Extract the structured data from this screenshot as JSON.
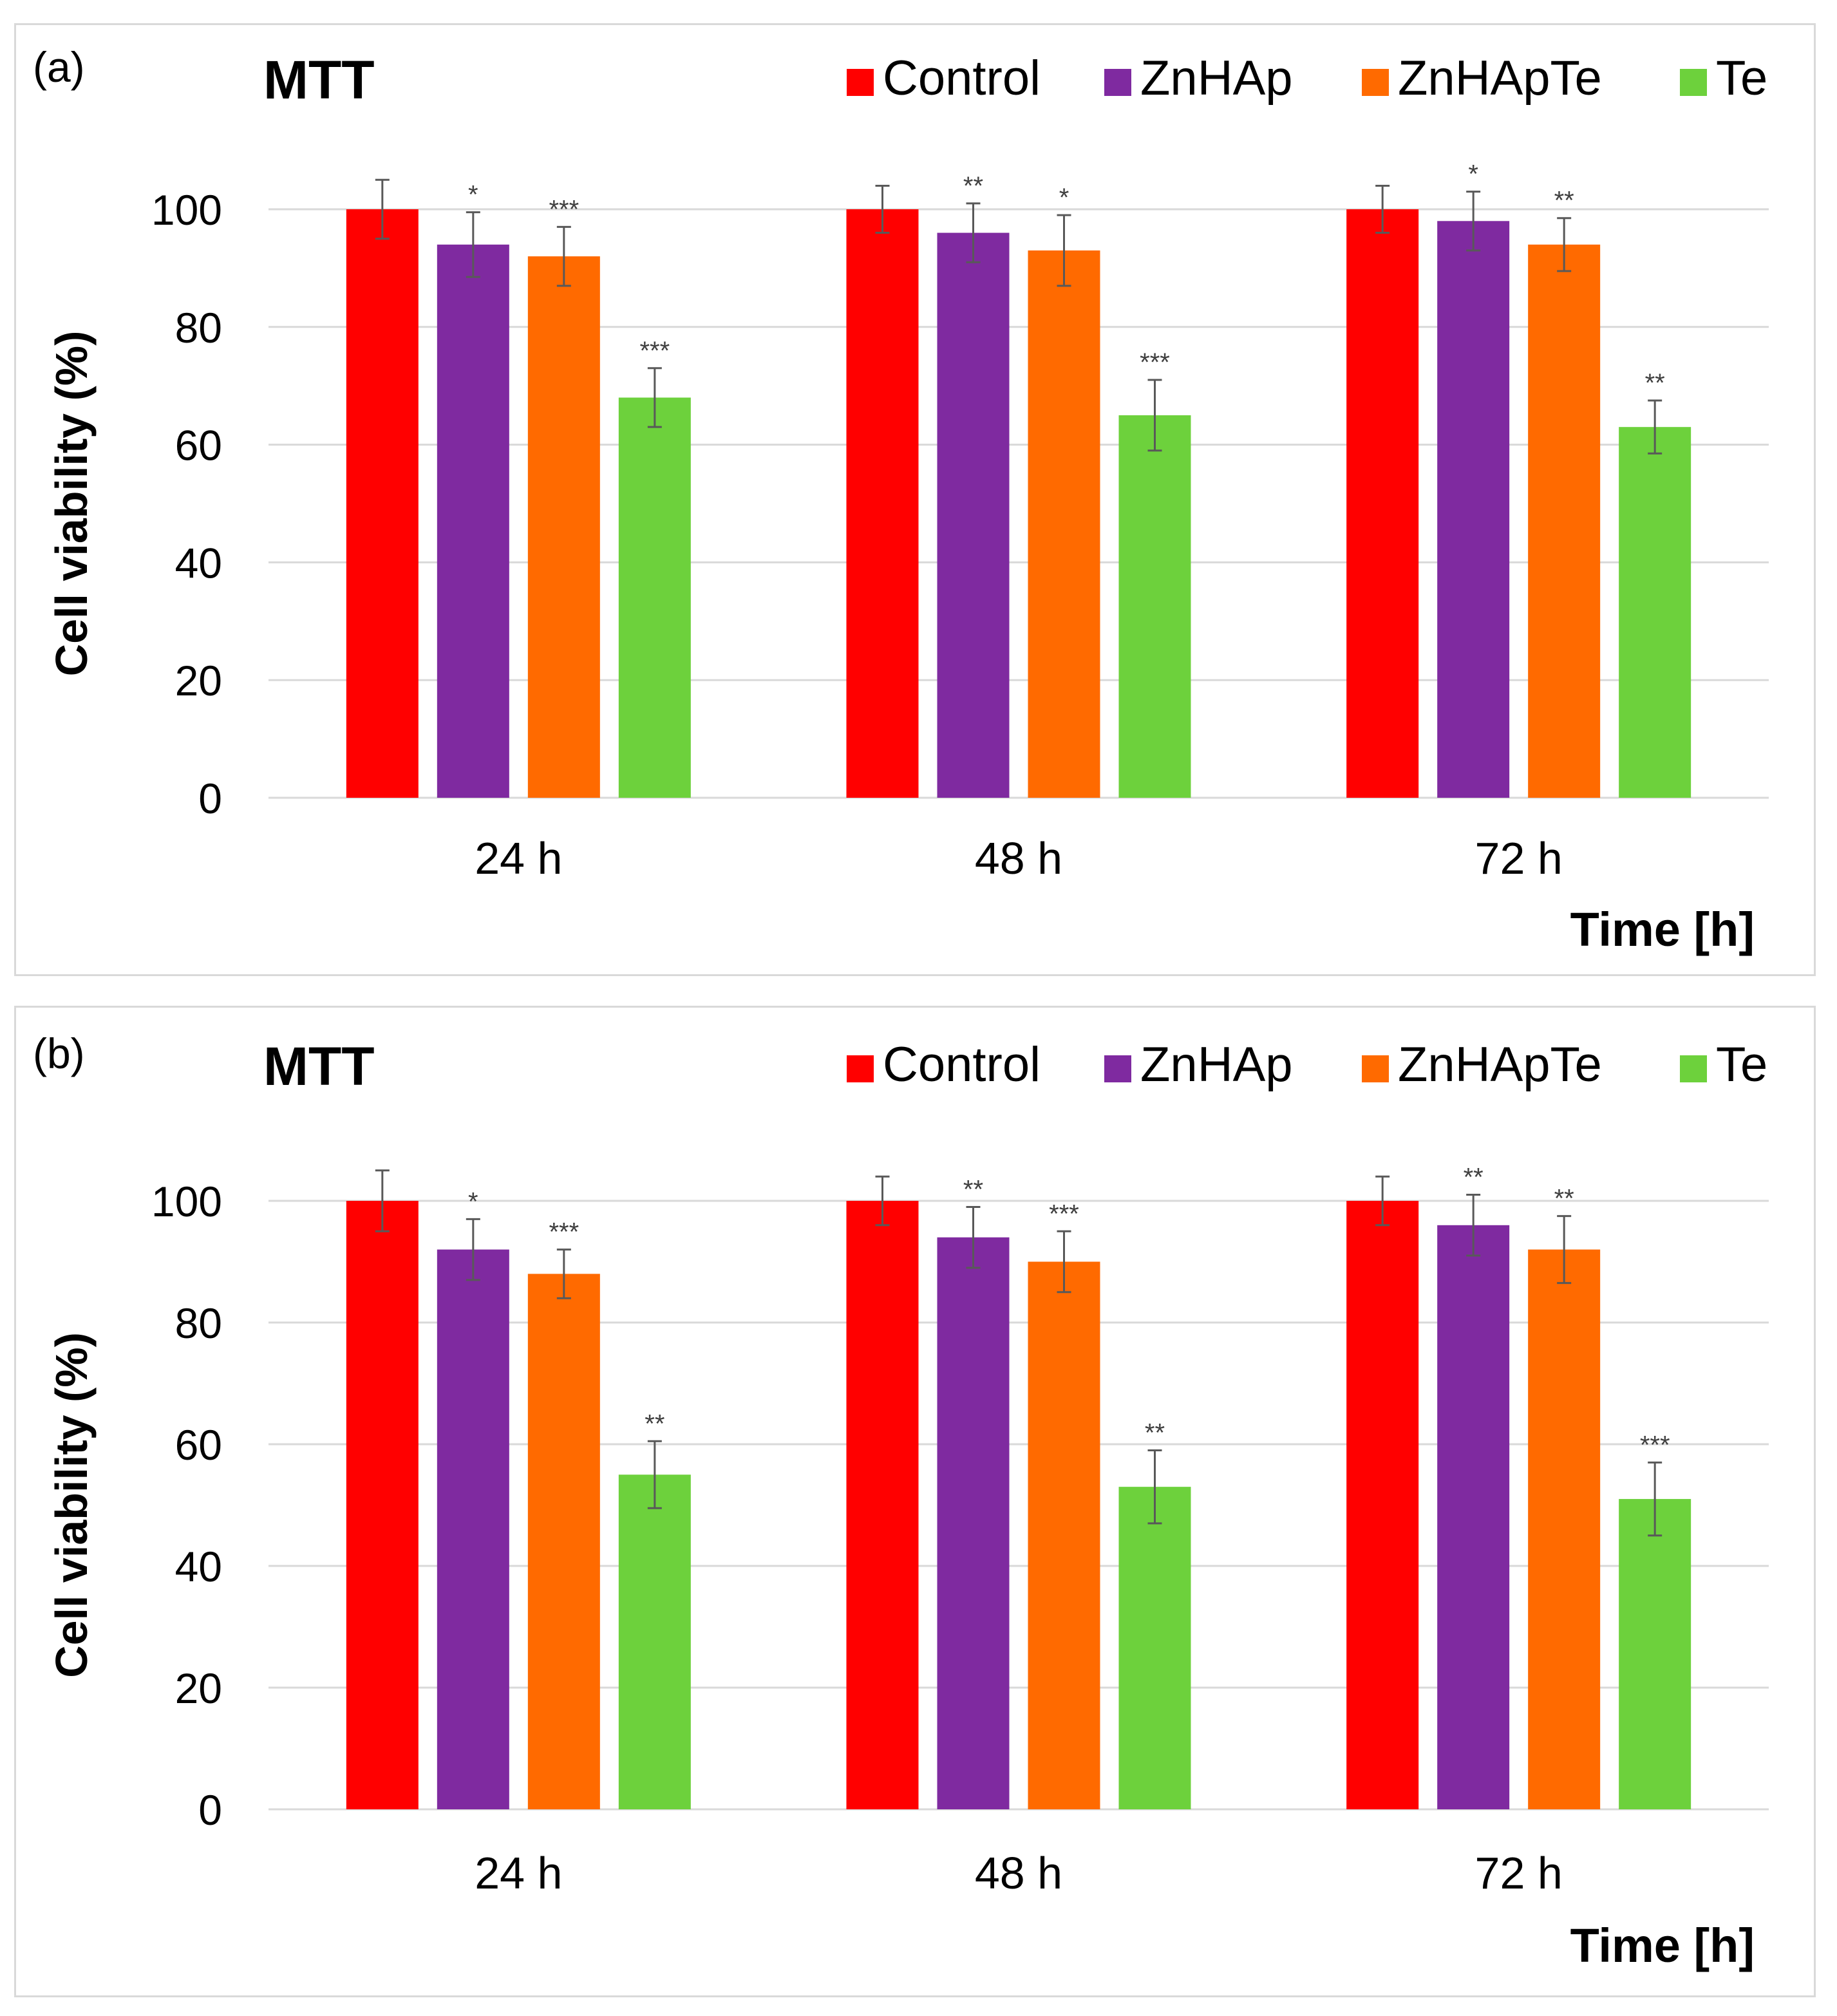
{
  "chart_data": [
    {
      "type": "bar",
      "panel_label": "(a)",
      "title": "MTT",
      "ylabel": "Cell viability (%)",
      "xlabel": "Time [h]",
      "ylim": [
        0,
        100
      ],
      "yticks": [
        "0",
        "20",
        "40",
        "60",
        "80",
        "100"
      ],
      "grid": true,
      "legend_position": "top",
      "categories": [
        "24 h",
        "48 h",
        "72 h"
      ],
      "series": [
        {
          "name": "Control",
          "color": "#ff0000",
          "values": [
            100,
            100,
            100
          ],
          "errors": [
            5,
            4,
            4
          ],
          "significance": [
            "",
            "",
            ""
          ]
        },
        {
          "name": "ZnHAp",
          "color": "#7f2aa0",
          "values": [
            94,
            96,
            98
          ],
          "errors": [
            5.5,
            5,
            5
          ],
          "significance": [
            "*",
            "**",
            "*"
          ]
        },
        {
          "name": "ZnHApTe",
          "color": "#ff6a00",
          "values": [
            92,
            93,
            94
          ],
          "errors": [
            5,
            6,
            4.5
          ],
          "significance": [
            "***",
            "*",
            "**"
          ]
        },
        {
          "name": "Te",
          "color": "#6dd13c",
          "values": [
            68,
            65,
            63
          ],
          "errors": [
            5,
            6,
            4.5
          ],
          "significance": [
            "***",
            "***",
            "**"
          ]
        }
      ]
    },
    {
      "type": "bar",
      "panel_label": "(b)",
      "title": "MTT",
      "ylabel": "Cell viability (%)",
      "xlabel": "Time [h]",
      "ylim": [
        0,
        100
      ],
      "yticks": [
        "0",
        "20",
        "40",
        "60",
        "80",
        "100"
      ],
      "grid": true,
      "legend_position": "top",
      "categories": [
        "24 h",
        "48 h",
        "72 h"
      ],
      "series": [
        {
          "name": "Control",
          "color": "#ff0000",
          "values": [
            100,
            100,
            100
          ],
          "errors": [
            5,
            4,
            4
          ],
          "significance": [
            "",
            "",
            ""
          ]
        },
        {
          "name": "ZnHAp",
          "color": "#7f2aa0",
          "values": [
            92,
            94,
            96
          ],
          "errors": [
            5,
            5,
            5
          ],
          "significance": [
            "*",
            "**",
            "**"
          ]
        },
        {
          "name": "ZnHApTe",
          "color": "#ff6a00",
          "values": [
            88,
            90,
            92
          ],
          "errors": [
            4,
            5,
            5.5
          ],
          "significance": [
            "***",
            "***",
            "**"
          ]
        },
        {
          "name": "Te",
          "color": "#6dd13c",
          "values": [
            55,
            53,
            51
          ],
          "errors": [
            5.5,
            6,
            6
          ],
          "significance": [
            "**",
            "**",
            "***"
          ]
        }
      ]
    }
  ]
}
